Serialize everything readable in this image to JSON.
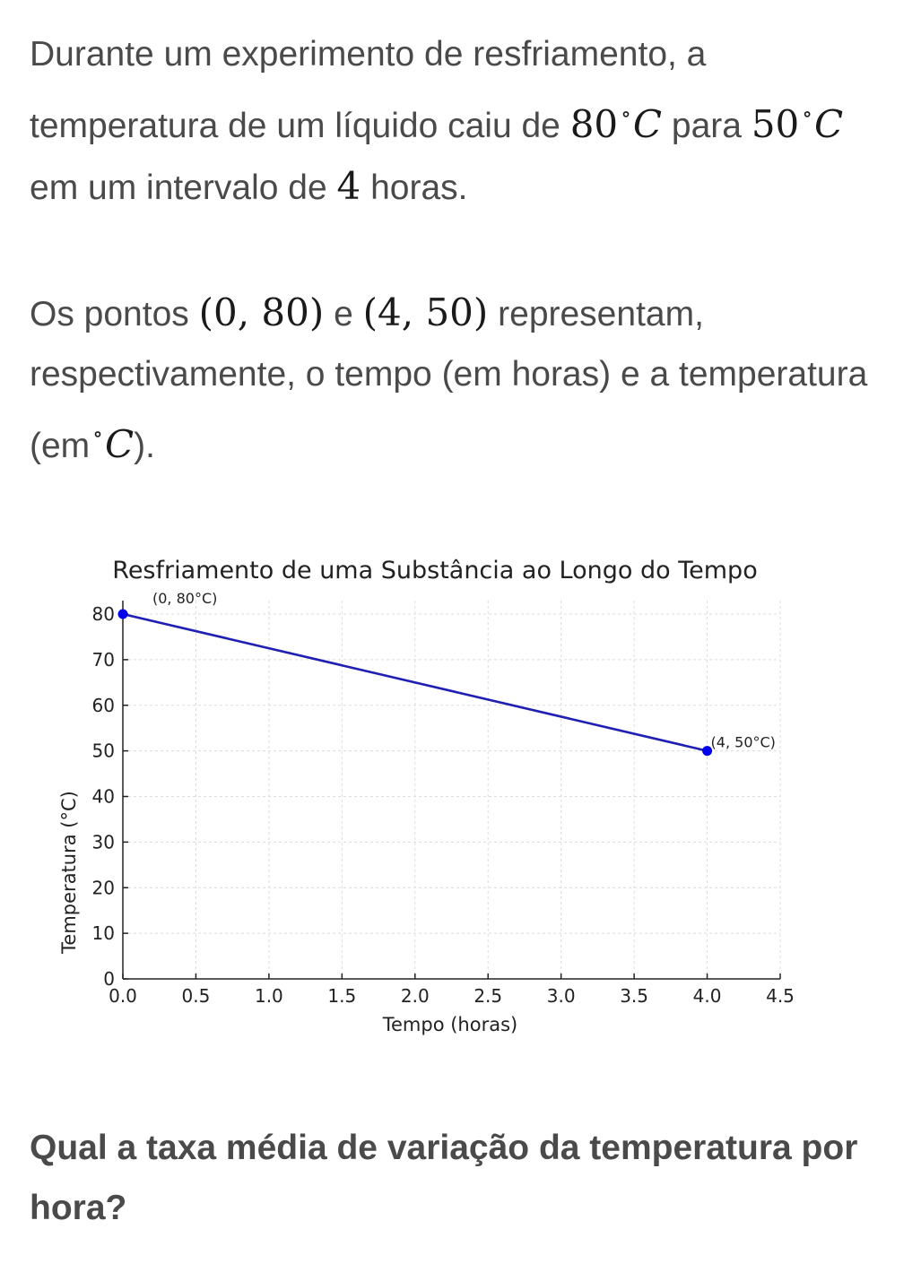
{
  "problem": {
    "p1": {
      "t1": "Durante um experimento de resfriamento, a temperatura de um líquido caiu de",
      "m1": "80",
      "u1": "C",
      "t2": "para",
      "m2": "50",
      "u2": "C",
      "t3": "em um intervalo de",
      "m3": "4",
      "t4": "horas."
    },
    "p2": {
      "t1": "Os pontos",
      "m1": "(0, 80)",
      "t2": "e",
      "m2": "(4, 50)",
      "t3": "representam, respectivamente, o tempo (em horas) e a temperatura (em",
      "u1": "C",
      "t4": ")."
    },
    "question": "Qual a taxa média de variação da temperatura por hora?"
  },
  "chart_data": {
    "type": "line",
    "title": "Resfriamento de uma Substância ao Longo do Tempo",
    "xlabel": "Tempo (horas)",
    "ylabel": "Temperatura (°C)",
    "xlim": [
      0,
      4.5
    ],
    "ylim": [
      0,
      80
    ],
    "xticks": [
      0.0,
      0.5,
      1.0,
      1.5,
      2.0,
      2.5,
      3.0,
      3.5,
      4.0,
      4.5
    ],
    "xtick_labels": [
      "0.0",
      "0.5",
      "1.0",
      "1.5",
      "2.0",
      "2.5",
      "3.0",
      "3.5",
      "4.0",
      "4.5"
    ],
    "yticks": [
      0,
      10,
      20,
      30,
      40,
      50,
      60,
      70,
      80
    ],
    "ytick_labels": [
      "0",
      "10",
      "20",
      "30",
      "40",
      "50",
      "60",
      "70",
      "80"
    ],
    "grid": true,
    "line_color": "#1f1fb4",
    "point_color": "#0000ee",
    "series": [
      {
        "x": [
          0,
          4
        ],
        "y": [
          80,
          50
        ],
        "point_labels": [
          "(0, 80°C)",
          "(4, 50°C)"
        ]
      }
    ]
  }
}
